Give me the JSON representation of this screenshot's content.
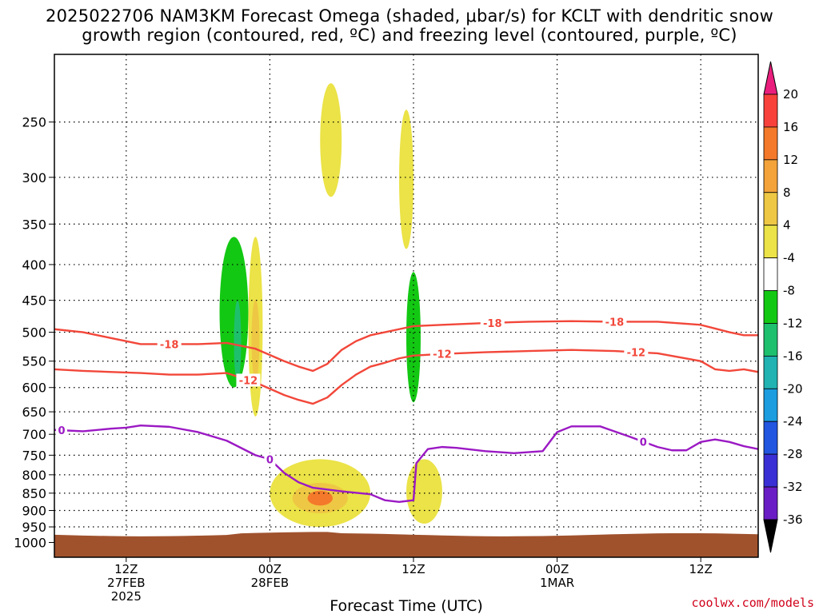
{
  "title": {
    "line1": "2025022706 NAM3KM Forecast Omega (shaded, μbar/s) for KCLT with dendritic snow",
    "line2": "growth region (contoured, red, ºC) and freezing level (contoured, purple, ºC)"
  },
  "credit": "coolwx.com/models",
  "chart_data": {
    "type": "heatmap",
    "title": "2025022706 NAM3KM Forecast Omega (shaded, μbar/s) for KCLT with dendritic snow growth region (contoured, red, ºC) and freezing level (contoured, purple, ºC)",
    "xlabel": "Forecast Time (UTC)",
    "ylabel": "",
    "y_scale": "log-pressure, inverted",
    "ylim": [
      1050,
      200
    ],
    "xlim": [
      0,
      49
    ],
    "grid": true,
    "y_ticks": [
      250,
      300,
      350,
      400,
      450,
      500,
      550,
      600,
      650,
      700,
      750,
      800,
      850,
      900,
      950,
      1000
    ],
    "x_ticks": [
      {
        "hour": 5,
        "line1": "12Z",
        "line2": "27FEB",
        "line3": "2025"
      },
      {
        "hour": 15,
        "line1": "00Z",
        "line2": "28FEB",
        "line3": ""
      },
      {
        "hour": 25,
        "line1": "12Z",
        "line2": "",
        "line3": ""
      },
      {
        "hour": 35,
        "line1": "00Z",
        "line2": "1MAR",
        "line3": ""
      },
      {
        "hour": 45,
        "line1": "12Z",
        "line2": "",
        "line3": ""
      }
    ],
    "colorbar": {
      "labels": [
        "20",
        "16",
        "12",
        "8",
        "4",
        "-4",
        "-8",
        "-12",
        "-16",
        "-20",
        "-24",
        "-28",
        "-32",
        "-36"
      ],
      "colors": [
        "#ea1e7d",
        "#f7413a",
        "#f4792a",
        "#f3a33a",
        "#eec744",
        "#ebe347",
        "#ffffff",
        "#13c813",
        "#1ec06e",
        "#21b3b2",
        "#1b9de0",
        "#2255e0",
        "#3a2fd4",
        "#6a1dc4",
        "#9b0fbf",
        "#a6a6a6",
        "#000000"
      ]
    },
    "series": [
      {
        "name": "-18",
        "color": "#f2473a",
        "x": [
          0,
          2,
          4,
          6,
          8,
          10,
          12,
          14,
          16,
          17,
          18,
          19,
          20,
          21,
          22,
          23,
          24,
          25,
          27,
          30,
          33,
          36,
          39,
          42,
          45,
          47,
          48,
          49
        ],
        "y": [
          495,
          500,
          510,
          520,
          520,
          520,
          518,
          528,
          550,
          560,
          568,
          555,
          530,
          515,
          505,
          500,
          495,
          490,
          488,
          485,
          483,
          482,
          483,
          483,
          488,
          500,
          505,
          505
        ]
      },
      {
        "name": "-12",
        "color": "#f2473a",
        "x": [
          0,
          2,
          4,
          6,
          8,
          10,
          12,
          14,
          16,
          17,
          18,
          19,
          20,
          21,
          22,
          23,
          24,
          25,
          27,
          30,
          33,
          36,
          39,
          42,
          45,
          46,
          47,
          48,
          49
        ],
        "y": [
          565,
          568,
          570,
          572,
          575,
          575,
          572,
          590,
          615,
          625,
          633,
          620,
          595,
          575,
          560,
          553,
          545,
          540,
          537,
          534,
          532,
          530,
          532,
          536,
          550,
          565,
          568,
          565,
          570
        ]
      },
      {
        "name": "0",
        "color": "#9b19c4",
        "x": [
          0,
          2,
          4,
          5,
          6,
          8,
          10,
          12,
          14,
          15,
          16,
          17,
          18,
          19,
          20,
          22,
          23,
          24,
          25,
          25.2,
          26,
          27,
          28,
          30,
          32,
          34,
          35,
          36,
          38,
          40,
          42,
          43,
          44,
          45,
          46,
          47,
          48,
          49
        ],
        "y": [
          690,
          693,
          687,
          685,
          680,
          683,
          695,
          715,
          750,
          760,
          795,
          820,
          835,
          840,
          845,
          853,
          870,
          875,
          870,
          770,
          735,
          730,
          732,
          740,
          745,
          740,
          695,
          682,
          682,
          705,
          730,
          738,
          738,
          718,
          712,
          718,
          728,
          735
        ]
      }
    ],
    "shaded_features": [
      {
        "field": "upward motion",
        "range": "-4 to -8",
        "x": [
          11.5,
          13.5
        ],
        "y": [
          365,
          600
        ]
      },
      {
        "field": "upward motion",
        "range": "-8 to -12",
        "x": [
          12.5,
          13
        ],
        "y": [
          450,
          590
        ]
      },
      {
        "field": "downward motion",
        "range": "4 to 12",
        "x": [
          13.5,
          14.5
        ],
        "y": [
          365,
          660
        ]
      },
      {
        "field": "downward motion",
        "range": "4 to 8",
        "x": [
          18.5,
          20
        ],
        "y": [
          220,
          320
        ]
      },
      {
        "field": "downward motion",
        "range": "4 to 8",
        "x": [
          24,
          25
        ],
        "y": [
          240,
          380
        ]
      },
      {
        "field": "upward motion",
        "range": "-4 to -8",
        "x": [
          24.5,
          25.5
        ],
        "y": [
          410,
          630
        ]
      },
      {
        "field": "downward motion",
        "range": "4 to 16",
        "x": [
          15,
          22
        ],
        "y": [
          760,
          950
        ]
      },
      {
        "field": "downward motion",
        "range": "4 to 8",
        "x": [
          24.5,
          27
        ],
        "y": [
          760,
          940
        ]
      }
    ]
  }
}
